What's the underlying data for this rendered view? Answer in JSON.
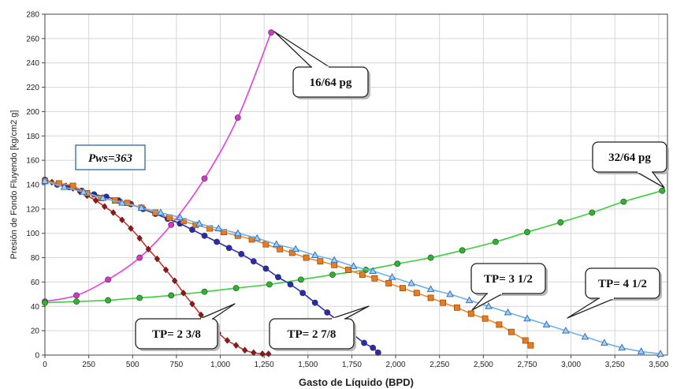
{
  "chart_data": {
    "type": "line",
    "xlabel": "Gasto de Líquido (BPD)",
    "ylabel": "Presión de Fondo Fluyendo [kg/cm2 g]",
    "xlim": [
      0,
      3550
    ],
    "ylim": [
      0,
      280
    ],
    "x_ticks": [
      "0",
      "250",
      "500",
      "750",
      "1,000",
      "1,250",
      "1,500",
      "1,750",
      "2,000",
      "2,250",
      "2,500",
      "2,750",
      "3,000",
      "3,250",
      "3,500"
    ],
    "x_tick_values": [
      0,
      250,
      500,
      750,
      1000,
      1250,
      1500,
      1750,
      2000,
      2250,
      2500,
      2750,
      3000,
      3250,
      3500
    ],
    "y_ticks": [
      "0",
      "20",
      "40",
      "60",
      "80",
      "100",
      "120",
      "140",
      "160",
      "180",
      "200",
      "220",
      "240",
      "260",
      "280"
    ],
    "y_tick_values": [
      0,
      20,
      40,
      60,
      80,
      100,
      120,
      140,
      160,
      180,
      200,
      220,
      240,
      260,
      280
    ],
    "grid": true,
    "series": [
      {
        "name": "16/64 pg",
        "color": "#e83ce0",
        "marker": "circle",
        "marker_color": "#d437c9",
        "points": [
          [
            0,
            44
          ],
          [
            180,
            49
          ],
          [
            360,
            62
          ],
          [
            540,
            80
          ],
          [
            720,
            107
          ],
          [
            910,
            145
          ],
          [
            1100,
            195
          ],
          [
            1290,
            265
          ]
        ]
      },
      {
        "name": "32/64 pg",
        "color": "#3ccf3c",
        "marker": "circle",
        "marker_color": "#29b829",
        "points": [
          [
            0,
            43
          ],
          [
            180,
            44
          ],
          [
            360,
            45
          ],
          [
            540,
            47
          ],
          [
            720,
            49
          ],
          [
            910,
            52
          ],
          [
            1090,
            55
          ],
          [
            1280,
            58
          ],
          [
            1460,
            62
          ],
          [
            1640,
            66
          ],
          [
            1830,
            70
          ],
          [
            2010,
            75
          ],
          [
            2200,
            80
          ],
          [
            2380,
            86
          ],
          [
            2570,
            93
          ],
          [
            2750,
            101
          ],
          [
            2940,
            109
          ],
          [
            3120,
            117
          ],
          [
            3300,
            126
          ],
          [
            3520,
            135
          ]
        ]
      },
      {
        "name": "TP= 2 3/8",
        "color": "#c83030",
        "marker": "diamond",
        "marker_color": "#8b1a1a",
        "points": [
          [
            0,
            144
          ],
          [
            40,
            142
          ],
          [
            80,
            141
          ],
          [
            120,
            139
          ],
          [
            160,
            137
          ],
          [
            200,
            134
          ],
          [
            240,
            131
          ],
          [
            290,
            127
          ],
          [
            340,
            122
          ],
          [
            390,
            117
          ],
          [
            440,
            111
          ],
          [
            490,
            104
          ],
          [
            540,
            96
          ],
          [
            590,
            87
          ],
          [
            640,
            79
          ],
          [
            690,
            70
          ],
          [
            740,
            61
          ],
          [
            790,
            51
          ],
          [
            840,
            42
          ],
          [
            890,
            33
          ],
          [
            940,
            25
          ],
          [
            990,
            18
          ],
          [
            1040,
            12
          ],
          [
            1090,
            8
          ],
          [
            1140,
            4
          ],
          [
            1190,
            2
          ],
          [
            1240,
            1
          ],
          [
            1275,
            1
          ]
        ]
      },
      {
        "name": "TP= 2 7/8",
        "color": "#3030b0",
        "marker": "circle",
        "marker_color": "#2a2ab0",
        "points": [
          [
            0,
            144
          ],
          [
            70,
            140
          ],
          [
            140,
            138
          ],
          [
            210,
            135
          ],
          [
            280,
            132
          ],
          [
            350,
            130
          ],
          [
            420,
            127
          ],
          [
            490,
            124
          ],
          [
            560,
            120
          ],
          [
            630,
            116
          ],
          [
            700,
            112
          ],
          [
            770,
            108
          ],
          [
            840,
            103
          ],
          [
            910,
            98
          ],
          [
            980,
            93
          ],
          [
            1050,
            88
          ],
          [
            1120,
            83
          ],
          [
            1190,
            77
          ],
          [
            1260,
            71
          ],
          [
            1330,
            64
          ],
          [
            1400,
            58
          ],
          [
            1470,
            51
          ],
          [
            1540,
            43
          ],
          [
            1610,
            35
          ],
          [
            1680,
            27
          ],
          [
            1750,
            18
          ],
          [
            1820,
            10
          ],
          [
            1870,
            6
          ],
          [
            1900,
            2
          ]
        ]
      },
      {
        "name": "TP= 3 1/2",
        "color": "#f08a30",
        "marker": "square",
        "marker_color": "#e87a20",
        "points": [
          [
            0,
            143
          ],
          [
            80,
            141
          ],
          [
            160,
            139
          ],
          [
            240,
            133
          ],
          [
            320,
            129
          ],
          [
            400,
            127
          ],
          [
            470,
            125
          ],
          [
            550,
            121
          ],
          [
            630,
            117
          ],
          [
            710,
            113
          ],
          [
            790,
            110
          ],
          [
            860,
            107
          ],
          [
            940,
            104
          ],
          [
            1020,
            101
          ],
          [
            1100,
            98
          ],
          [
            1180,
            95
          ],
          [
            1260,
            91
          ],
          [
            1340,
            87
          ],
          [
            1410,
            84
          ],
          [
            1490,
            80
          ],
          [
            1570,
            77
          ],
          [
            1650,
            74
          ],
          [
            1730,
            70
          ],
          [
            1810,
            66
          ],
          [
            1880,
            63
          ],
          [
            1960,
            59
          ],
          [
            2040,
            55
          ],
          [
            2120,
            51
          ],
          [
            2200,
            47
          ],
          [
            2270,
            43
          ],
          [
            2350,
            39
          ],
          [
            2430,
            34
          ],
          [
            2510,
            30
          ],
          [
            2590,
            25
          ],
          [
            2660,
            19
          ],
          [
            2740,
            12
          ],
          [
            2770,
            8
          ]
        ]
      },
      {
        "name": "TP= 4 1/2",
        "color": "#6fb1e6",
        "marker": "triangle",
        "marker_color": "#3870c0",
        "points": [
          [
            0,
            143
          ],
          [
            110,
            138
          ],
          [
            220,
            134
          ],
          [
            330,
            129
          ],
          [
            440,
            125
          ],
          [
            550,
            121
          ],
          [
            660,
            117
          ],
          [
            770,
            113
          ],
          [
            880,
            108
          ],
          [
            990,
            104
          ],
          [
            1100,
            100
          ],
          [
            1210,
            96
          ],
          [
            1320,
            91
          ],
          [
            1430,
            87
          ],
          [
            1540,
            82
          ],
          [
            1650,
            78
          ],
          [
            1760,
            73
          ],
          [
            1870,
            69
          ],
          [
            1980,
            64
          ],
          [
            2090,
            59
          ],
          [
            2200,
            54
          ],
          [
            2310,
            50
          ],
          [
            2420,
            45
          ],
          [
            2530,
            40
          ],
          [
            2640,
            35
          ],
          [
            2750,
            30
          ],
          [
            2860,
            25
          ],
          [
            2970,
            20
          ],
          [
            3080,
            15
          ],
          [
            3190,
            10
          ],
          [
            3290,
            6
          ],
          [
            3400,
            3
          ],
          [
            3510,
            1
          ]
        ]
      }
    ],
    "annotations": [
      {
        "label": "16/64 pg"
      },
      {
        "label": "32/64 pg"
      },
      {
        "label": "TP= 3 1/2"
      },
      {
        "label": "TP= 4 1/2"
      },
      {
        "label": "TP= 2 3/8"
      },
      {
        "label": "TP= 2 7/8"
      },
      {
        "label": "Pws=363"
      }
    ]
  }
}
